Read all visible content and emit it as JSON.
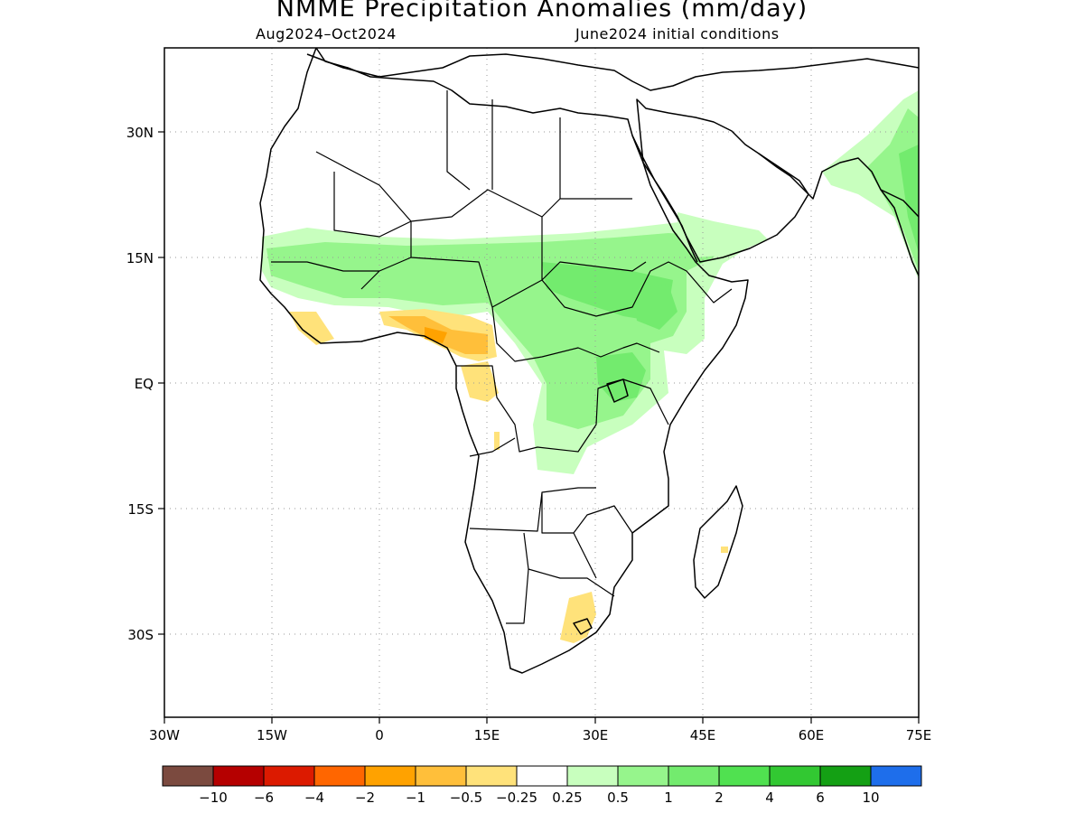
{
  "title": "NMME Precipitation Anomalies (mm/day)",
  "period": "Aug2024–Oct2024",
  "initial_conditions": "June2024 initial conditions",
  "axes": {
    "lat_labels": [
      "30N",
      "15N",
      "EQ",
      "15S",
      "30S"
    ],
    "lon_labels": [
      "30W",
      "15W",
      "0",
      "15E",
      "30E",
      "45E",
      "60E",
      "75E"
    ],
    "lon_range": [
      -30,
      75
    ],
    "lat_range": [
      -40,
      40
    ],
    "grid": "dotted"
  },
  "colorbar": {
    "colors": [
      "#7b4a3f",
      "#b50000",
      "#dc1a00",
      "#ff6600",
      "#ffa200",
      "#ffbf3a",
      "#ffe27a",
      "#ffffff",
      "#c8ffbe",
      "#96f58c",
      "#73eb6e",
      "#50e150",
      "#32c832",
      "#14a014",
      "#1e6eeb"
    ],
    "tick_labels": [
      "-10",
      "-6",
      "-4",
      "-2",
      "-1",
      "-0.5",
      "-0.25",
      "0.25",
      "0.5",
      "1",
      "2",
      "4",
      "6",
      "10"
    ]
  }
}
